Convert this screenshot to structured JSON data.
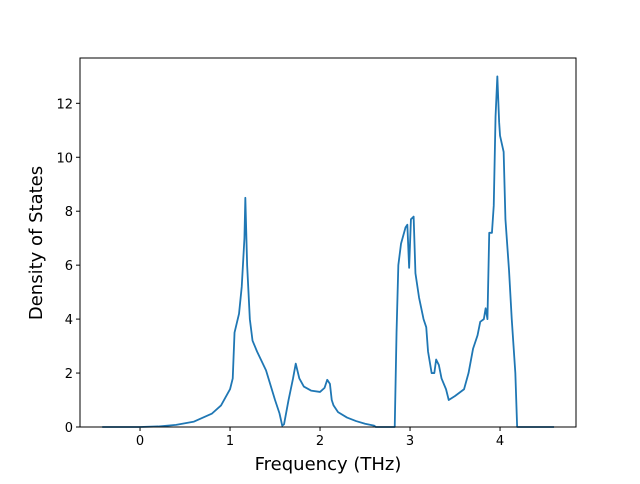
{
  "chart_data": {
    "type": "line",
    "xlabel": "Frequency (THz)",
    "ylabel": "Density of States",
    "x": [
      -0.42,
      0,
      0.2,
      0.4,
      0.6,
      0.8,
      0.9,
      1.0,
      1.03,
      1.05,
      1.1,
      1.13,
      1.16,
      1.17,
      1.19,
      1.22,
      1.25,
      1.3,
      1.4,
      1.5,
      1.55,
      1.58,
      1.6,
      1.65,
      1.7,
      1.73,
      1.77,
      1.82,
      1.9,
      2.0,
      2.05,
      2.08,
      2.11,
      2.13,
      2.15,
      2.2,
      2.3,
      2.4,
      2.5,
      2.6,
      2.62,
      2.83,
      2.85,
      2.87,
      2.9,
      2.95,
      2.97,
      2.99,
      3.01,
      3.04,
      3.06,
      3.1,
      3.15,
      3.18,
      3.2,
      3.24,
      3.27,
      3.29,
      3.32,
      3.35,
      3.4,
      3.43,
      3.5,
      3.6,
      3.65,
      3.7,
      3.75,
      3.78,
      3.82,
      3.84,
      3.86,
      3.88,
      3.91,
      3.93,
      3.95,
      3.97,
      3.99,
      4.0,
      4.04,
      4.06,
      4.1,
      4.13,
      4.15,
      4.17,
      4.19,
      4.6
    ],
    "series": [
      {
        "color": "#1f77b4",
        "values": [
          0,
          0,
          0.02,
          0.08,
          0.2,
          0.5,
          0.8,
          1.4,
          1.8,
          3.5,
          4.2,
          5.2,
          7.0,
          8.5,
          6.0,
          4.0,
          3.2,
          2.8,
          2.1,
          1.0,
          0.5,
          0.05,
          0.1,
          1.0,
          1.8,
          2.35,
          1.8,
          1.5,
          1.35,
          1.3,
          1.45,
          1.75,
          1.6,
          1.0,
          0.8,
          0.55,
          0.35,
          0.22,
          0.12,
          0.05,
          0,
          0,
          3.5,
          6.0,
          6.8,
          7.4,
          7.5,
          5.9,
          7.7,
          7.8,
          5.7,
          4.8,
          4.0,
          3.7,
          2.8,
          2.0,
          2.0,
          2.5,
          2.3,
          1.8,
          1.4,
          1.0,
          1.15,
          1.4,
          2.0,
          2.9,
          3.4,
          3.9,
          4.0,
          4.4,
          4.0,
          7.2,
          7.2,
          8.2,
          11.5,
          13.0,
          11.3,
          10.8,
          10.2,
          7.7,
          5.8,
          4.0,
          3.0,
          2.0,
          0,
          0
        ]
      }
    ],
    "xlim": [
      -0.667,
      4.844
    ],
    "ylim": [
      0,
      13.68
    ],
    "xticks": [
      0,
      1,
      2,
      3,
      4
    ],
    "yticks": [
      0,
      2,
      4,
      6,
      8,
      10,
      12
    ]
  }
}
